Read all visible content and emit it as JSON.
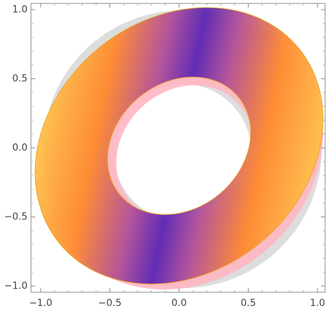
{
  "chart_data": {
    "type": "region",
    "xlim": [
      -1.07,
      1.055
    ],
    "ylim": [
      -1.045,
      1.045
    ],
    "xticks": [
      {
        "value": -1,
        "label": "−1.0"
      },
      {
        "value": -0.5,
        "label": "−0.5"
      },
      {
        "value": 0,
        "label": "0.0"
      },
      {
        "value": 0.5,
        "label": "0.5"
      },
      {
        "value": 1,
        "label": "1.0"
      }
    ],
    "yticks": [
      {
        "value": -1,
        "label": "−1.0"
      },
      {
        "value": -0.5,
        "label": "−0.5"
      },
      {
        "value": 0,
        "label": "0.0"
      },
      {
        "value": 0.5,
        "label": "0.5"
      },
      {
        "value": 1,
        "label": "1.0"
      }
    ]
  }
}
